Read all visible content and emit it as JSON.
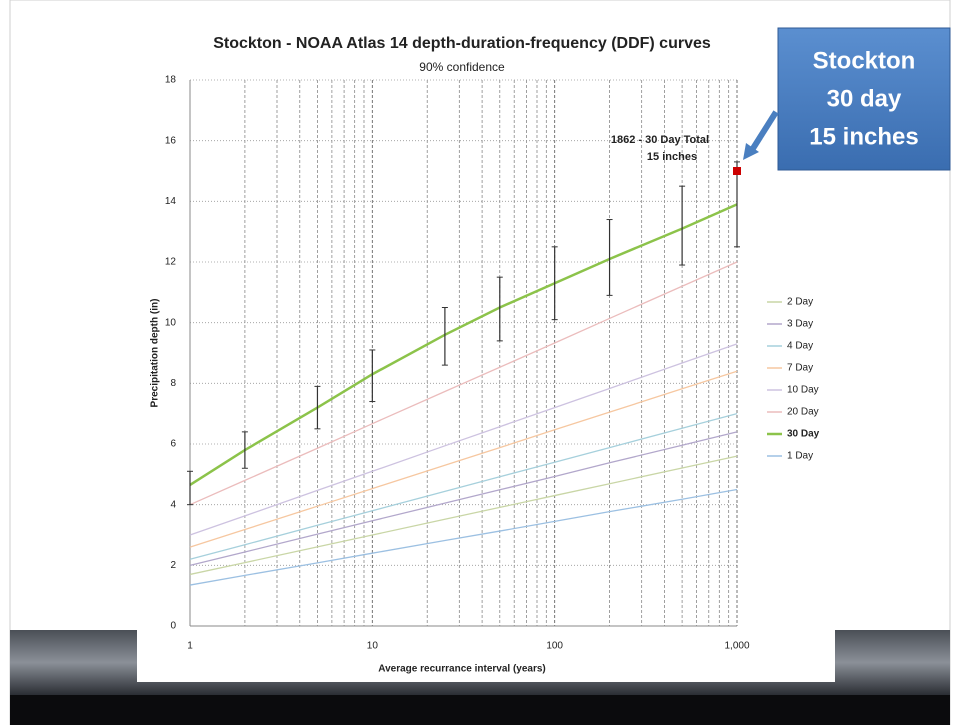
{
  "chart_data": {
    "type": "line",
    "title": "Stockton - NOAA Atlas 14 depth-duration-frequency (DDF) curves",
    "subtitle": "90% confidence",
    "x_label": "Average recurrance interval (years)",
    "y_label": "Precipitation depth (in)",
    "x_log": true,
    "xlim": [
      1,
      1000
    ],
    "xticks": [
      1,
      10,
      100,
      {
        "value": 1000,
        "label": "1,000"
      }
    ],
    "xminor_ticks": [
      2,
      3,
      4,
      5,
      6,
      7,
      8,
      9,
      20,
      30,
      40,
      50,
      60,
      70,
      80,
      90,
      200,
      300,
      400,
      500,
      600,
      700,
      800,
      900
    ],
    "ylim": [
      0,
      18
    ],
    "yticks": [
      0,
      2,
      4,
      6,
      8,
      10,
      12,
      14,
      16,
      18
    ],
    "grid": true,
    "legend": "right",
    "x": [
      1,
      2,
      5,
      10,
      25,
      50,
      100,
      200,
      500,
      1000
    ],
    "series": [
      {
        "name": "2 Day",
        "color": "#c9d6a6",
        "values": [
          1.7,
          2.09,
          2.61,
          3.0,
          3.52,
          3.91,
          4.3,
          4.69,
          5.21,
          5.6
        ]
      },
      {
        "name": "3 Day",
        "color": "#b2a7cb",
        "values": [
          2.0,
          2.44,
          3.03,
          3.47,
          4.05,
          4.49,
          4.93,
          5.38,
          5.96,
          6.4
        ]
      },
      {
        "name": "4 Day",
        "color": "#a6d0dc",
        "values": [
          2.2,
          2.68,
          3.32,
          3.8,
          4.44,
          4.92,
          5.4,
          5.88,
          6.52,
          7.0
        ]
      },
      {
        "name": "7 Day",
        "color": "#f6c7a0",
        "values": [
          2.6,
          3.18,
          3.95,
          4.53,
          5.3,
          5.88,
          6.47,
          7.05,
          7.82,
          8.4
        ]
      },
      {
        "name": "10 Day",
        "color": "#cdc2e0",
        "values": [
          3.0,
          3.63,
          4.47,
          5.1,
          5.94,
          6.57,
          7.2,
          7.83,
          8.67,
          9.3
        ]
      },
      {
        "name": "20 Day",
        "color": "#ebbcbc",
        "values": [
          4.0,
          4.8,
          5.86,
          6.67,
          7.73,
          8.53,
          9.33,
          10.14,
          11.2,
          12.0
        ]
      },
      {
        "name": "30 Day",
        "color": "#8cc34a",
        "values": [
          4.65,
          5.8,
          7.2,
          8.3,
          9.6,
          10.5,
          11.3,
          12.1,
          13.1,
          13.9
        ]
      },
      {
        "name": "1 Day",
        "color": "#9cc0e2",
        "values": [
          1.35,
          1.67,
          2.08,
          2.4,
          2.82,
          3.13,
          3.45,
          3.77,
          4.18,
          4.5
        ]
      }
    ],
    "confidence_interval": {
      "low": [
        4.0,
        5.2,
        6.5,
        7.4,
        8.6,
        9.4,
        10.1,
        10.9,
        11.9,
        12.5
      ],
      "high": [
        5.1,
        6.4,
        7.9,
        9.1,
        10.5,
        11.5,
        12.5,
        13.4,
        14.5,
        15.3
      ]
    },
    "highlight": {
      "x": 1000,
      "y": 15,
      "color": "#cc0000",
      "label": "1862  - 30 Day Total",
      "sublabel": "15 inches"
    },
    "callout": {
      "lines": [
        "Stockton",
        "30 day",
        "15 inches"
      ],
      "color": "#4a7fc0"
    }
  }
}
